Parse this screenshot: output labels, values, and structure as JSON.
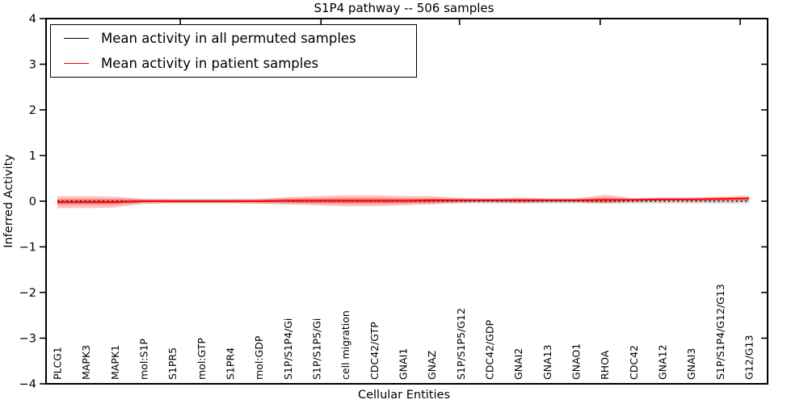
{
  "figure": {
    "title": "S1P4 pathway -- 506 samples",
    "xlabel": "Cellular Entities",
    "ylabel": "Inferred Activity"
  },
  "legend": {
    "items": [
      {
        "label": "Mean activity in all permuted samples",
        "color": "#000000"
      },
      {
        "label": "Mean activity in patient samples",
        "color": "#ff0000"
      }
    ]
  },
  "chart_data": {
    "type": "line",
    "title": "S1P4 pathway -- 506 samples",
    "xlabel": "Cellular Entities",
    "ylabel": "Inferred Activity",
    "ylim": [
      -4,
      4
    ],
    "ytick_values": [
      4,
      3,
      2,
      1,
      0,
      -1,
      -2,
      -3,
      -4
    ],
    "ytick_labels": [
      "4",
      "3",
      "2",
      "1",
      "0",
      "−1",
      "−2",
      "−3",
      "−4"
    ],
    "grid": false,
    "legend_position": "upper left",
    "categories": [
      "PLCG1",
      "MAPK3",
      "MAPK1",
      "mol:S1P",
      "S1PR5",
      "mol:GTP",
      "S1PR4",
      "mol:GDP",
      "S1P/S1P4/Gi",
      "S1P/S1P5/Gi",
      "cell migration",
      "CDC42/GTP",
      "GNAI1",
      "GNAZ",
      "S1P/S1P5/G12",
      "CDC42/GDP",
      "GNAI2",
      "GNA13",
      "GNAO1",
      "RHOA",
      "CDC42",
      "GNA12",
      "GNAI3",
      "S1P/S1P4/G12/G13",
      "G12/G13"
    ],
    "series": [
      {
        "name": "Mean activity in all permuted samples",
        "color": "#000000",
        "line_style": "dotted",
        "dash": "2 3.6",
        "width": 1.6,
        "values": [
          0,
          0,
          0,
          0,
          0,
          0,
          0,
          0,
          0,
          0,
          0,
          0,
          0,
          0,
          0,
          0,
          0,
          0,
          0,
          0,
          0,
          0,
          0,
          0,
          0
        ],
        "band_color": "rgba(0,0,0,0.15)",
        "band_upper": [
          0.05,
          0.05,
          0.05,
          0.05,
          0.05,
          0.05,
          0.05,
          0.05,
          0.05,
          0.05,
          0.05,
          0.05,
          0.05,
          0.05,
          0.05,
          0.05,
          0.05,
          0.05,
          0.05,
          0.05,
          0.05,
          0.05,
          0.05,
          0.05,
          0.05
        ],
        "band_lower": [
          -0.05,
          -0.05,
          -0.05,
          -0.05,
          -0.05,
          -0.05,
          -0.05,
          -0.05,
          -0.05,
          -0.05,
          -0.05,
          -0.05,
          -0.05,
          -0.05,
          -0.05,
          -0.05,
          -0.05,
          -0.05,
          -0.05,
          -0.05,
          -0.05,
          -0.05,
          -0.05,
          -0.05,
          -0.05
        ]
      },
      {
        "name": "Mean activity in patient samples",
        "color": "#ff0000",
        "line_style": "solid",
        "dash": "",
        "width": 1.9,
        "values": [
          -0.02,
          -0.02,
          -0.02,
          0,
          0,
          0,
          0,
          0,
          0.01,
          0.01,
          0.01,
          0.01,
          0.01,
          0.02,
          0.02,
          0.02,
          0.02,
          0.02,
          0.02,
          0.03,
          0.03,
          0.04,
          0.04,
          0.05,
          0.06
        ],
        "band_color": "rgba(255,0,0,0.25)",
        "band_upper": [
          0.11,
          0.11,
          0.1,
          0.05,
          0.04,
          0.04,
          0.04,
          0.05,
          0.09,
          0.11,
          0.13,
          0.13,
          0.11,
          0.11,
          0.07,
          0.06,
          0.08,
          0.06,
          0.06,
          0.14,
          0.07,
          0.08,
          0.08,
          0.1,
          0.12
        ],
        "band_lower": [
          -0.15,
          -0.15,
          -0.14,
          -0.05,
          -0.04,
          -0.04,
          -0.04,
          -0.05,
          -0.07,
          -0.09,
          -0.11,
          -0.11,
          -0.09,
          -0.07,
          -0.03,
          -0.02,
          -0.04,
          -0.02,
          -0.02,
          -0.05,
          -0.01,
          0,
          0,
          0,
          0
        ],
        "band2_upper": [
          0.04,
          0.04,
          0.04,
          0.02,
          0.02,
          0.02,
          0.02,
          0.02,
          0.05,
          0.06,
          0.07,
          0.07,
          0.06,
          0.06,
          0.04,
          0.04,
          0.05,
          0.04,
          0.04,
          0.08,
          0.05,
          0.06,
          0.06,
          0.08,
          0.09
        ],
        "band2_lower": [
          -0.08,
          -0.08,
          -0.08,
          -0.02,
          -0.02,
          -0.02,
          -0.02,
          -0.02,
          -0.03,
          -0.04,
          -0.05,
          -0.05,
          -0.04,
          -0.02,
          0,
          0,
          -0.01,
          0,
          0,
          -0.02,
          0.01,
          0.02,
          0.02,
          0.02,
          0.03
        ]
      }
    ]
  }
}
